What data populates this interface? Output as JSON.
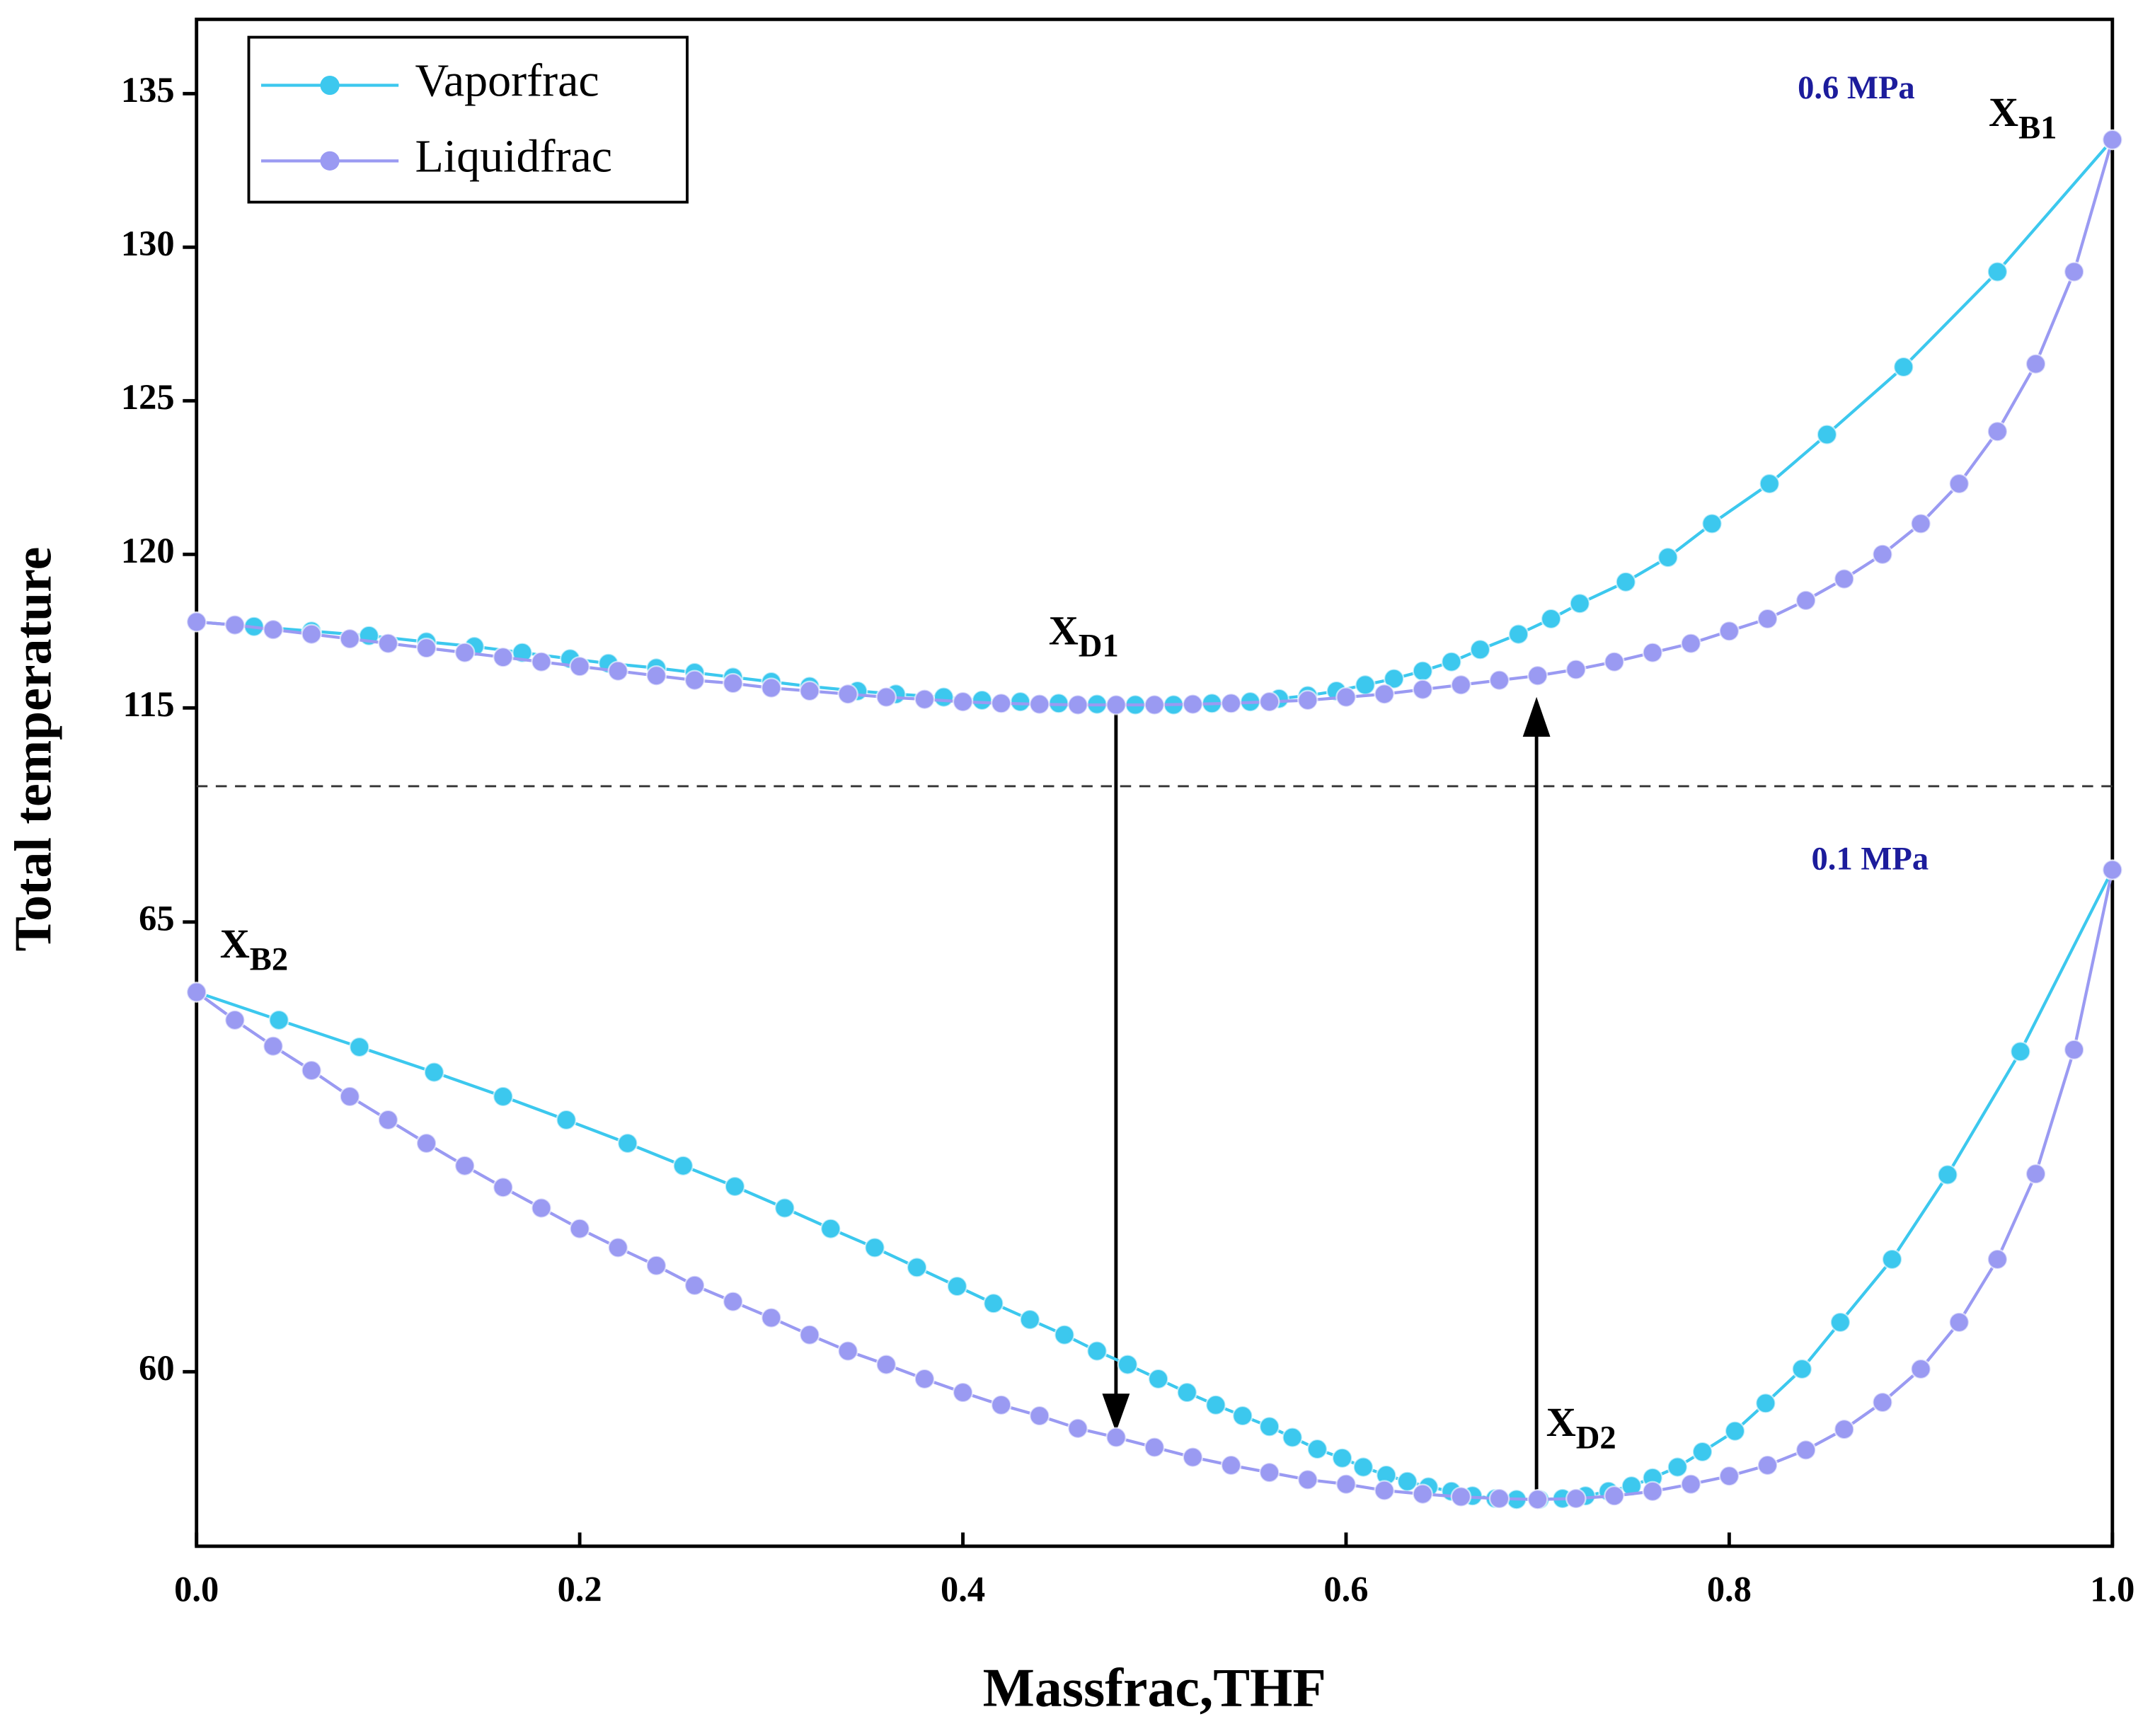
{
  "chart_data": [
    {
      "type": "line",
      "y_label": "Total temperature",
      "pressure_label": "0.6 MPa",
      "annotations": [
        {
          "text": "X",
          "subscript": "B1"
        },
        {
          "text": "X",
          "subscript": "D1"
        }
      ],
      "xlim": [
        0,
        1
      ],
      "ylim": [
        112.45,
        137.42
      ],
      "yticks": [
        115,
        120,
        125,
        130,
        135
      ],
      "series": [
        {
          "name": "Vaporfrac",
          "color": "#3cc8ee",
          "x": [
            0,
            0.03,
            0.06,
            0.09,
            0.12,
            0.145,
            0.17,
            0.195,
            0.215,
            0.24,
            0.26,
            0.28,
            0.3,
            0.32,
            0.345,
            0.365,
            0.39,
            0.41,
            0.43,
            0.45,
            0.47,
            0.49,
            0.51,
            0.53,
            0.55,
            0.565,
            0.58,
            0.595,
            0.61,
            0.625,
            0.64,
            0.655,
            0.67,
            0.69,
            0.707,
            0.722,
            0.746,
            0.768,
            0.791,
            0.821,
            0.851,
            0.891,
            0.94,
            1.0
          ],
          "values": [
            117.8,
            117.65,
            117.5,
            117.35,
            117.15,
            117.0,
            116.8,
            116.6,
            116.45,
            116.3,
            116.15,
            116.0,
            115.85,
            115.7,
            115.55,
            115.45,
            115.35,
            115.25,
            115.2,
            115.15,
            115.12,
            115.1,
            115.1,
            115.15,
            115.2,
            115.3,
            115.4,
            115.55,
            115.75,
            115.95,
            116.2,
            116.5,
            116.9,
            117.4,
            117.9,
            118.4,
            119.1,
            119.9,
            121.0,
            122.3,
            123.9,
            126.1,
            129.2,
            133.5
          ]
        },
        {
          "name": "Liquidfrac",
          "color": "#9a9af2",
          "x": [
            0,
            0.02,
            0.04,
            0.06,
            0.08,
            0.1,
            0.12,
            0.14,
            0.16,
            0.18,
            0.2,
            0.22,
            0.24,
            0.26,
            0.28,
            0.3,
            0.32,
            0.34,
            0.36,
            0.38,
            0.4,
            0.42,
            0.44,
            0.46,
            0.48,
            0.5,
            0.52,
            0.54,
            0.56,
            0.58,
            0.6,
            0.62,
            0.64,
            0.66,
            0.68,
            0.7,
            0.72,
            0.74,
            0.76,
            0.78,
            0.8,
            0.82,
            0.84,
            0.86,
            0.88,
            0.9,
            0.92,
            0.94,
            0.96,
            0.98,
            1.0
          ],
          "values": [
            117.8,
            117.7,
            117.55,
            117.4,
            117.25,
            117.1,
            116.95,
            116.8,
            116.65,
            116.5,
            116.35,
            116.2,
            116.05,
            115.9,
            115.8,
            115.65,
            115.55,
            115.45,
            115.35,
            115.28,
            115.2,
            115.15,
            115.12,
            115.1,
            115.1,
            115.1,
            115.12,
            115.15,
            115.2,
            115.25,
            115.35,
            115.45,
            115.6,
            115.75,
            115.9,
            116.05,
            116.25,
            116.5,
            116.8,
            117.1,
            117.5,
            117.9,
            118.5,
            119.2,
            120.0,
            121.0,
            122.3,
            124.0,
            126.2,
            129.2,
            133.5
          ]
        }
      ]
    },
    {
      "type": "line",
      "x_label": "Massfrac,THF",
      "pressure_label": "0.1 MPa",
      "annotations": [
        {
          "text": "X",
          "subscript": "B2"
        },
        {
          "text": "X",
          "subscript": "D2"
        }
      ],
      "xlim": [
        0,
        1
      ],
      "xticks": [
        {
          "value": 0,
          "label": "0.0"
        },
        0.2,
        0.4,
        0.6,
        0.8,
        {
          "value": 1,
          "label": "1.0"
        }
      ],
      "ylim": [
        58.06,
        66.51
      ],
      "yticks": [
        60,
        65
      ],
      "series": [
        {
          "color": "#3cc8ee",
          "x": [
            0,
            0.043,
            0.085,
            0.124,
            0.16,
            0.193,
            0.225,
            0.254,
            0.281,
            0.307,
            0.331,
            0.354,
            0.376,
            0.397,
            0.416,
            0.435,
            0.453,
            0.47,
            0.486,
            0.502,
            0.517,
            0.532,
            0.546,
            0.56,
            0.572,
            0.585,
            0.598,
            0.609,
            0.621,
            0.632,
            0.643,
            0.655,
            0.666,
            0.678,
            0.689,
            0.701,
            0.713,
            0.725,
            0.737,
            0.749,
            0.76,
            0.773,
            0.786,
            0.803,
            0.819,
            0.838,
            0.858,
            0.885,
            0.914,
            0.952,
            1.0
          ],
          "values": [
            64.22,
            63.91,
            63.61,
            63.33,
            63.06,
            62.8,
            62.54,
            62.29,
            62.06,
            61.82,
            61.59,
            61.38,
            61.16,
            60.95,
            60.76,
            60.58,
            60.41,
            60.23,
            60.08,
            59.92,
            59.77,
            59.63,
            59.51,
            59.39,
            59.27,
            59.14,
            59.04,
            58.94,
            58.85,
            58.78,
            58.72,
            58.67,
            58.62,
            58.59,
            58.58,
            58.58,
            58.59,
            58.62,
            58.67,
            58.73,
            58.82,
            58.94,
            59.11,
            59.34,
            59.65,
            60.03,
            60.55,
            61.25,
            62.19,
            63.56,
            65.58
          ]
        },
        {
          "color": "#9a9af2",
          "x": [
            0,
            0.02,
            0.04,
            0.06,
            0.08,
            0.1,
            0.12,
            0.14,
            0.16,
            0.18,
            0.2,
            0.22,
            0.24,
            0.26,
            0.28,
            0.3,
            0.32,
            0.34,
            0.36,
            0.38,
            0.4,
            0.42,
            0.44,
            0.46,
            0.48,
            0.5,
            0.52,
            0.54,
            0.56,
            0.58,
            0.6,
            0.62,
            0.64,
            0.66,
            0.68,
            0.7,
            0.72,
            0.74,
            0.76,
            0.78,
            0.8,
            0.82,
            0.84,
            0.86,
            0.88,
            0.9,
            0.92,
            0.94,
            0.96,
            0.98,
            1.0
          ],
          "values": [
            64.22,
            63.91,
            63.62,
            63.35,
            63.06,
            62.8,
            62.54,
            62.29,
            62.05,
            61.82,
            61.59,
            61.38,
            61.18,
            60.96,
            60.78,
            60.6,
            60.41,
            60.23,
            60.08,
            59.92,
            59.77,
            59.63,
            59.51,
            59.37,
            59.27,
            59.16,
            59.05,
            58.96,
            58.88,
            58.8,
            58.75,
            58.68,
            58.64,
            58.61,
            58.59,
            58.58,
            58.59,
            58.62,
            58.67,
            58.75,
            58.84,
            58.96,
            59.13,
            59.36,
            59.66,
            60.03,
            60.55,
            61.25,
            62.2,
            63.58,
            65.58
          ]
        }
      ]
    }
  ]
}
